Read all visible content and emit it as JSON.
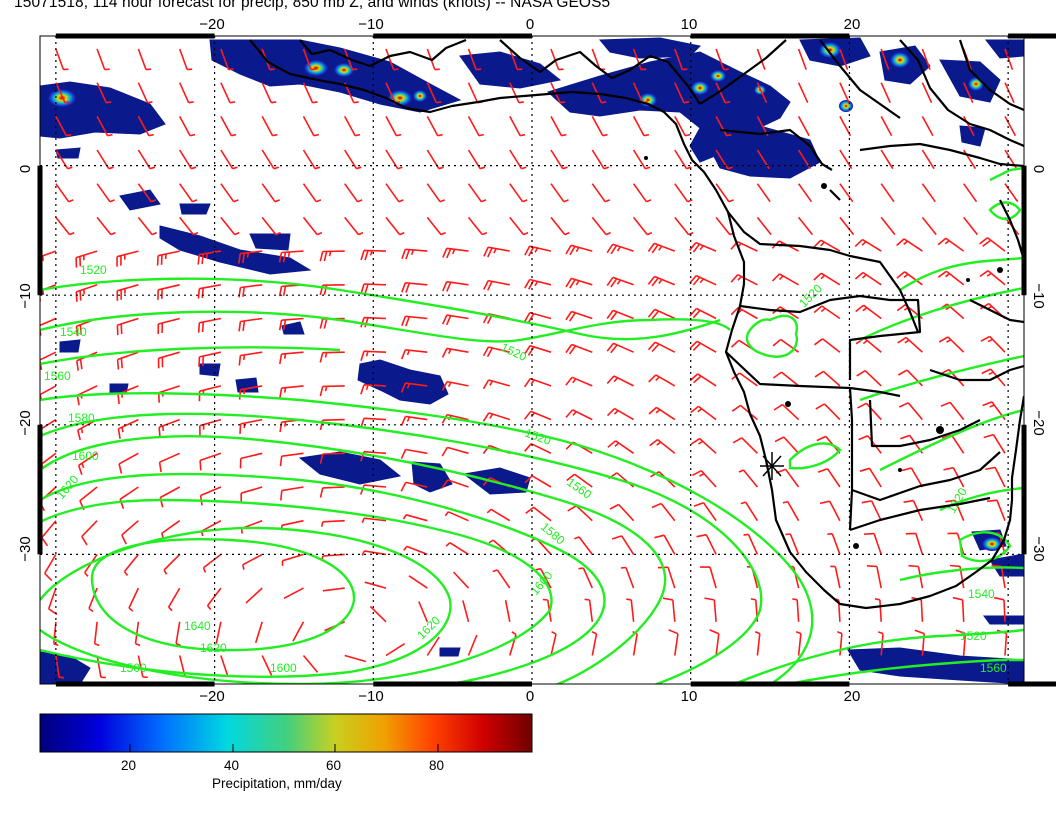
{
  "title": "15071518, 114 hour forecast for precip, 850 mb Z, and winds (knots) -- NASA GEOS5",
  "map": {
    "lon_range": [
      -31,
      31
    ],
    "lat_range": [
      -40,
      10
    ],
    "grid_lon": [
      -30,
      -20,
      -10,
      0,
      10,
      20,
      30
    ],
    "grid_lat": [
      0,
      -10,
      -20,
      -30
    ],
    "top_lon_labels": [
      "−20",
      "−10",
      "0",
      "10",
      "20"
    ],
    "bottom_lon_labels": [
      "−20",
      "−10",
      "0",
      "10",
      "20"
    ],
    "left_lat_labels": [
      "0",
      "−10",
      "−20",
      "−30"
    ],
    "right_lat_labels": [
      "0",
      "−10",
      "−20",
      "−30"
    ],
    "colors": {
      "contour": "#22ee22",
      "barb": "#ff1a1a",
      "coast": "#000000",
      "precip_low": "#0a1a8c",
      "grid": "#000000"
    },
    "contour_labels": [
      "1520",
      "1540",
      "1560",
      "1580",
      "1600",
      "1620",
      "1640",
      "1500"
    ]
  },
  "colorbar": {
    "title": "Precipitation, mm/day",
    "ticks": [
      "20",
      "40",
      "60",
      "80"
    ],
    "range": [
      0,
      98
    ]
  }
}
